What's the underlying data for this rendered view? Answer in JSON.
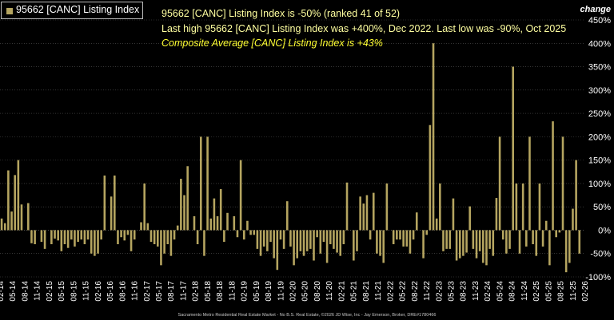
{
  "legend": {
    "label": "95662 [CANC] Listing Index"
  },
  "headlines": {
    "line1": "95662 [CANC] Listing Index is -50% (ranked 41 of 52)",
    "line2": "Last high 95662 [CANC] Listing Index was +400%, Dec 2022. Last low was -90%, Oct 2025",
    "line3": "Composite Average [CANC] Listing Index is +43%"
  },
  "footer": "Sacramento Metro Residential Real Estate Market - No B.S. Real Estate, ©2026 JD Wise, Inc - Jay Emerson, Broker, DRE#1780466",
  "colors": {
    "background": "#000000",
    "bar": "#b5a560",
    "headline": "#ffffa0",
    "composite": "#ffff33",
    "grid": "#555555"
  },
  "chart_data": {
    "type": "bar",
    "title": "",
    "ylabel": "change",
    "ylim": [
      -100,
      450
    ],
    "yticks": [
      -100,
      -50,
      0,
      50,
      100,
      150,
      200,
      250,
      300,
      350,
      400,
      450
    ],
    "ytick_labels": [
      "-100%",
      "-50%",
      "0%",
      "50%",
      "100%",
      "150%",
      "200%",
      "250%",
      "300%",
      "350%",
      "400%",
      "450%"
    ],
    "grid": true,
    "x_tick_labels": [
      "02-14",
      "05-14",
      "08-14",
      "11-14",
      "02-15",
      "05-15",
      "08-15",
      "11-15",
      "02-16",
      "05-16",
      "08-16",
      "11-16",
      "02-17",
      "05-17",
      "08-17",
      "11-17",
      "02-18",
      "05-18",
      "08-18",
      "11-18",
      "02-19",
      "05-19",
      "08-19",
      "11-19",
      "02-20",
      "05-20",
      "08-20",
      "11-20",
      "02-21",
      "05-21",
      "08-21",
      "11-21",
      "02-22",
      "05-22",
      "08-22",
      "11-22",
      "02-23",
      "05-23",
      "08-23",
      "11-23",
      "02-24",
      "05-24",
      "08-24",
      "11-24",
      "02-25",
      "05-25",
      "08-25",
      "11-25",
      "02-26"
    ],
    "series": [
      {
        "name": "95662 [CANC] Listing Index",
        "values": [
          25,
          15,
          128,
          40,
          118,
          150,
          55,
          0,
          58,
          -28,
          -30,
          0,
          -25,
          -40,
          0,
          -30,
          -18,
          -22,
          -45,
          -30,
          -38,
          -20,
          -35,
          -25,
          -20,
          -30,
          -20,
          -50,
          -55,
          -50,
          -20,
          117,
          0,
          72,
          117,
          -30,
          -15,
          -22,
          -10,
          -45,
          -20,
          0,
          17,
          100,
          15,
          -25,
          -30,
          -35,
          -75,
          -50,
          -30,
          -55,
          -20,
          10,
          110,
          75,
          137,
          0,
          30,
          -30,
          200,
          -55,
          200,
          25,
          68,
          30,
          88,
          -25,
          37,
          0,
          30,
          -15,
          150,
          -20,
          20,
          -10,
          -10,
          -40,
          -55,
          -35,
          -45,
          -25,
          -60,
          -85,
          -20,
          -40,
          62,
          -35,
          -75,
          -60,
          -45,
          -55,
          -45,
          -40,
          -65,
          -15,
          -50,
          -25,
          -70,
          -30,
          -40,
          -48,
          -55,
          -30,
          102,
          0,
          -65,
          -45,
          72,
          57,
          75,
          -20,
          80,
          -50,
          -55,
          -70,
          100,
          0,
          -30,
          -20,
          -20,
          -35,
          -35,
          -50,
          -20,
          38,
          0,
          -60,
          -10,
          225,
          400,
          25,
          100,
          -45,
          -40,
          -40,
          68,
          -65,
          -60,
          -55,
          -48,
          51,
          -40,
          -60,
          -45,
          -70,
          -75,
          -40,
          -55,
          69,
          200,
          -20,
          -50,
          -40,
          350,
          100,
          -50,
          100,
          -35,
          200,
          -30,
          -55,
          100,
          -35,
          20,
          -75,
          233,
          -15,
          -5,
          200,
          -90,
          -70,
          46,
          150,
          -50,
          0
        ]
      }
    ]
  }
}
